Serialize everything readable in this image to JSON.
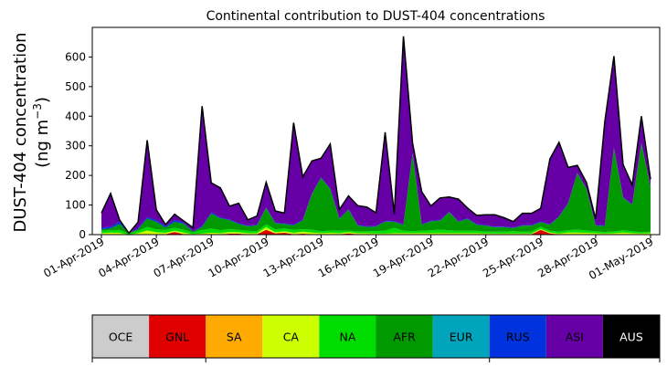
{
  "chart_data": {
    "type": "area",
    "stacked": true,
    "title": "Continental contribution to DUST-404 concentrations",
    "ylabel_line1": "DUST-404 concentration",
    "ylabel_line2_prefix": "(ng m",
    "ylabel_line2_exp": "−3",
    "ylabel_line2_suffix": ")",
    "ylim": [
      0,
      700
    ],
    "yticks": [
      0,
      100,
      200,
      300,
      400,
      500,
      600
    ],
    "ytick_labels": [
      "0",
      "100",
      "200",
      "300",
      "400",
      "500",
      "600"
    ],
    "xlim": [
      "2019-03-31T12:00",
      "2019-05-01T12:00"
    ],
    "xtick_dates": [
      "2019-04-01",
      "2019-04-04",
      "2019-04-07",
      "2019-04-10",
      "2019-04-13",
      "2019-04-16",
      "2019-04-19",
      "2019-04-22",
      "2019-04-25",
      "2019-04-28",
      "2019-05-01"
    ],
    "xtick_labels": [
      "01-Apr-2019",
      "04-Apr-2019",
      "07-Apr-2019",
      "10-Apr-2019",
      "13-Apr-2019",
      "16-Apr-2019",
      "19-Apr-2019",
      "22-Apr-2019",
      "25-Apr-2019",
      "28-Apr-2019",
      "01-May-2019"
    ],
    "x_start": "2019-04-01",
    "x_step_hours": 12,
    "series": [
      {
        "name": "OCE",
        "color": "#cccccc",
        "values": [
          1,
          1,
          1,
          0,
          1,
          1,
          1,
          1,
          1,
          1,
          0,
          1,
          1,
          1,
          1,
          1,
          1,
          1,
          1,
          1,
          1,
          1,
          1,
          1,
          1,
          1,
          1,
          1,
          1,
          1,
          1,
          1,
          1,
          1,
          1,
          1,
          1,
          1,
          1,
          1,
          1,
          1,
          1,
          1,
          1,
          1,
          1,
          1,
          1,
          1,
          1,
          1,
          1,
          1,
          1,
          1,
          1,
          1,
          1,
          1,
          1
        ]
      },
      {
        "name": "GNL",
        "color": "#e00000",
        "values": [
          0,
          0,
          0,
          0,
          0,
          0,
          0,
          0,
          8,
          0,
          0,
          0,
          0,
          0,
          2,
          2,
          0,
          0,
          15,
          3,
          5,
          0,
          2,
          0,
          0,
          0,
          0,
          3,
          0,
          0,
          0,
          0,
          0,
          0,
          0,
          0,
          0,
          0,
          0,
          0,
          0,
          0,
          0,
          0,
          0,
          0,
          0,
          0,
          15,
          3,
          0,
          0,
          0,
          0,
          0,
          0,
          0,
          0,
          0,
          0,
          0
        ]
      },
      {
        "name": "SA",
        "color": "#ffaa00",
        "values": [
          1,
          1,
          1,
          0,
          1,
          1,
          1,
          1,
          1,
          1,
          0,
          1,
          1,
          1,
          1,
          1,
          1,
          1,
          1,
          1,
          1,
          1,
          1,
          1,
          1,
          1,
          1,
          1,
          1,
          1,
          1,
          1,
          1,
          1,
          1,
          1,
          1,
          1,
          1,
          1,
          1,
          1,
          1,
          1,
          1,
          1,
          1,
          1,
          1,
          1,
          1,
          1,
          1,
          1,
          1,
          1,
          1,
          1,
          1,
          1,
          1
        ]
      },
      {
        "name": "CA",
        "color": "#ccff00",
        "values": [
          3,
          5,
          4,
          0,
          3,
          12,
          6,
          4,
          3,
          5,
          2,
          2,
          4,
          3,
          5,
          4,
          3,
          3,
          8,
          3,
          4,
          4,
          6,
          5,
          3,
          4,
          3,
          3,
          3,
          3,
          2,
          2,
          3,
          3,
          3,
          3,
          3,
          3,
          3,
          3,
          3,
          3,
          2,
          2,
          2,
          2,
          2,
          2,
          2,
          2,
          2,
          5,
          5,
          4,
          3,
          2,
          3,
          5,
          3,
          2,
          3
        ]
      },
      {
        "name": "NA",
        "color": "#00dd00",
        "values": [
          8,
          8,
          10,
          3,
          8,
          12,
          10,
          10,
          10,
          10,
          5,
          12,
          15,
          10,
          10,
          8,
          8,
          6,
          10,
          10,
          10,
          10,
          8,
          10,
          6,
          8,
          8,
          6,
          6,
          6,
          8,
          10,
          18,
          8,
          7,
          8,
          10,
          12,
          10,
          8,
          8,
          8,
          6,
          6,
          6,
          8,
          6,
          6,
          8,
          6,
          6,
          8,
          10,
          8,
          6,
          5,
          6,
          8,
          6,
          4,
          5
        ]
      },
      {
        "name": "AFR",
        "color": "#009900",
        "values": [
          5,
          6,
          20,
          2,
          5,
          28,
          25,
          8,
          20,
          20,
          3,
          10,
          50,
          40,
          30,
          20,
          15,
          20,
          55,
          20,
          15,
          15,
          30,
          120,
          180,
          140,
          40,
          70,
          20,
          15,
          15,
          30,
          20,
          20,
          260,
          20,
          30,
          30,
          60,
          30,
          40,
          20,
          20,
          15,
          15,
          10,
          20,
          20,
          15,
          20,
          50,
          90,
          190,
          140,
          20,
          20,
          280,
          110,
          90,
          300,
          150
        ]
      },
      {
        "name": "EUR",
        "color": "#00a5bb",
        "values": [
          0,
          0,
          0,
          0,
          0,
          0,
          0,
          0,
          0,
          0,
          0,
          0,
          0,
          0,
          0,
          0,
          0,
          0,
          0,
          0,
          0,
          0,
          0,
          0,
          0,
          0,
          0,
          0,
          0,
          0,
          0,
          0,
          0,
          0,
          0,
          0,
          0,
          0,
          0,
          0,
          0,
          0,
          0,
          0,
          0,
          0,
          0,
          0,
          0,
          0,
          0,
          0,
          0,
          0,
          0,
          0,
          0,
          0,
          0,
          0,
          0
        ]
      },
      {
        "name": "RUS",
        "color": "#0033dd",
        "values": [
          5,
          6,
          8,
          0,
          4,
          5,
          6,
          5,
          6,
          4,
          2,
          3,
          4,
          3,
          2,
          2,
          2,
          2,
          2,
          2,
          2,
          2,
          2,
          2,
          2,
          2,
          2,
          2,
          2,
          2,
          2,
          2,
          2,
          2,
          2,
          2,
          2,
          2,
          2,
          2,
          2,
          2,
          2,
          2,
          2,
          2,
          2,
          2,
          2,
          2,
          2,
          2,
          2,
          2,
          2,
          2,
          2,
          2,
          2,
          2,
          2
        ]
      },
      {
        "name": "ASI",
        "color": "#6600a6",
        "values": [
          50,
          112,
          5,
          0,
          20,
          260,
          35,
          5,
          20,
          5,
          12,
          405,
          100,
          100,
          45,
          68,
          20,
          30,
          85,
          40,
          35,
          345,
          145,
          110,
          65,
          150,
          30,
          45,
          65,
          65,
          45,
          300,
          25,
          635,
          35,
          110,
          50,
          75,
          50,
          75,
          35,
          30,
          35,
          40,
          30,
          20,
          40,
          40,
          45,
          220,
          250,
          120,
          25,
          20,
          20,
          350,
          310,
          110,
          65,
          90,
          25
        ]
      },
      {
        "name": "AUS",
        "color": "#000000",
        "values": [
          0,
          0,
          0,
          0,
          0,
          0,
          0,
          0,
          0,
          0,
          0,
          0,
          0,
          0,
          0,
          0,
          0,
          0,
          0,
          0,
          0,
          0,
          0,
          0,
          0,
          0,
          0,
          0,
          0,
          0,
          0,
          0,
          0,
          0,
          0,
          0,
          0,
          0,
          0,
          0,
          0,
          0,
          0,
          0,
          0,
          0,
          0,
          0,
          0,
          0,
          0,
          0,
          0,
          0,
          0,
          0,
          0,
          0,
          0,
          0,
          0
        ]
      }
    ]
  }
}
